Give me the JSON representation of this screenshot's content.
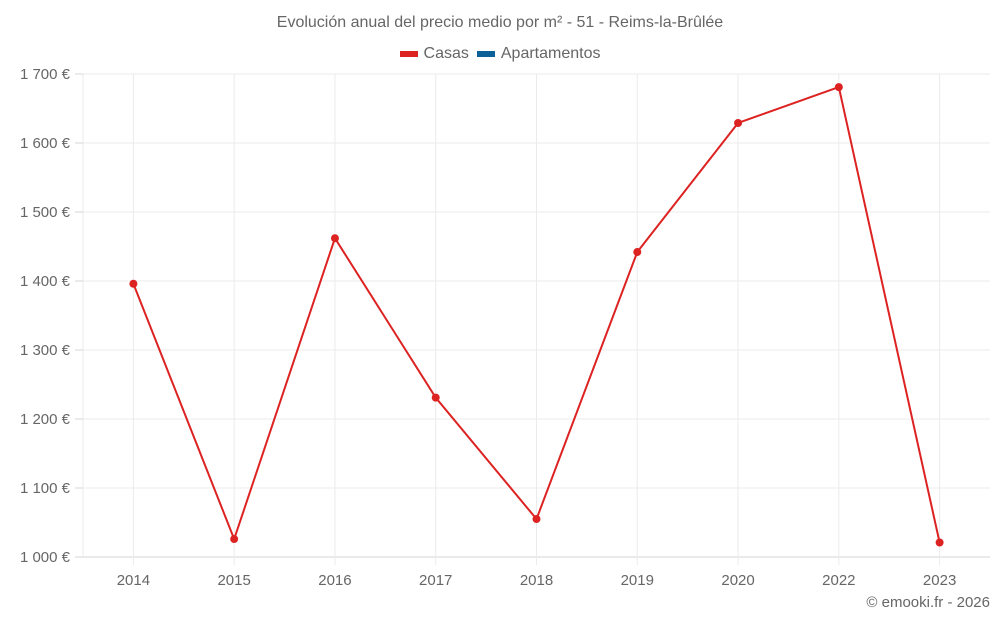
{
  "title": "Evolución anual del precio medio por m² - 51 - Reims-la-Brûlée",
  "legend": [
    {
      "label": "Casas",
      "color": "#dd2222"
    },
    {
      "label": "Apartamentos",
      "color": "#0d6199"
    }
  ],
  "credit": "© emooki.fr - 2026",
  "chart_data": {
    "type": "line",
    "title": "Evolución anual del precio medio por m² - 51 - Reims-la-Brûlée",
    "xlabel": "",
    "ylabel": "",
    "categories": [
      "2014",
      "2015",
      "2016",
      "2017",
      "2018",
      "2019",
      "2020",
      "2022",
      "2023"
    ],
    "series": [
      {
        "name": "Casas",
        "color": "#dd2222",
        "values": [
          1396,
          1026,
          1462,
          1231,
          1055,
          1442,
          1629,
          1681,
          1021
        ]
      },
      {
        "name": "Apartamentos",
        "color": "#0d6199",
        "values": []
      }
    ],
    "ylim": [
      1000,
      1700
    ],
    "yticks": [
      1000,
      1100,
      1200,
      1300,
      1400,
      1500,
      1600,
      1700
    ],
    "ytick_labels": [
      "1 000 €",
      "1 100 €",
      "1 200 €",
      "1 300 €",
      "1 400 €",
      "1 500 €",
      "1 600 €",
      "1 700 €"
    ],
    "grid": true,
    "legend_position": "top"
  }
}
